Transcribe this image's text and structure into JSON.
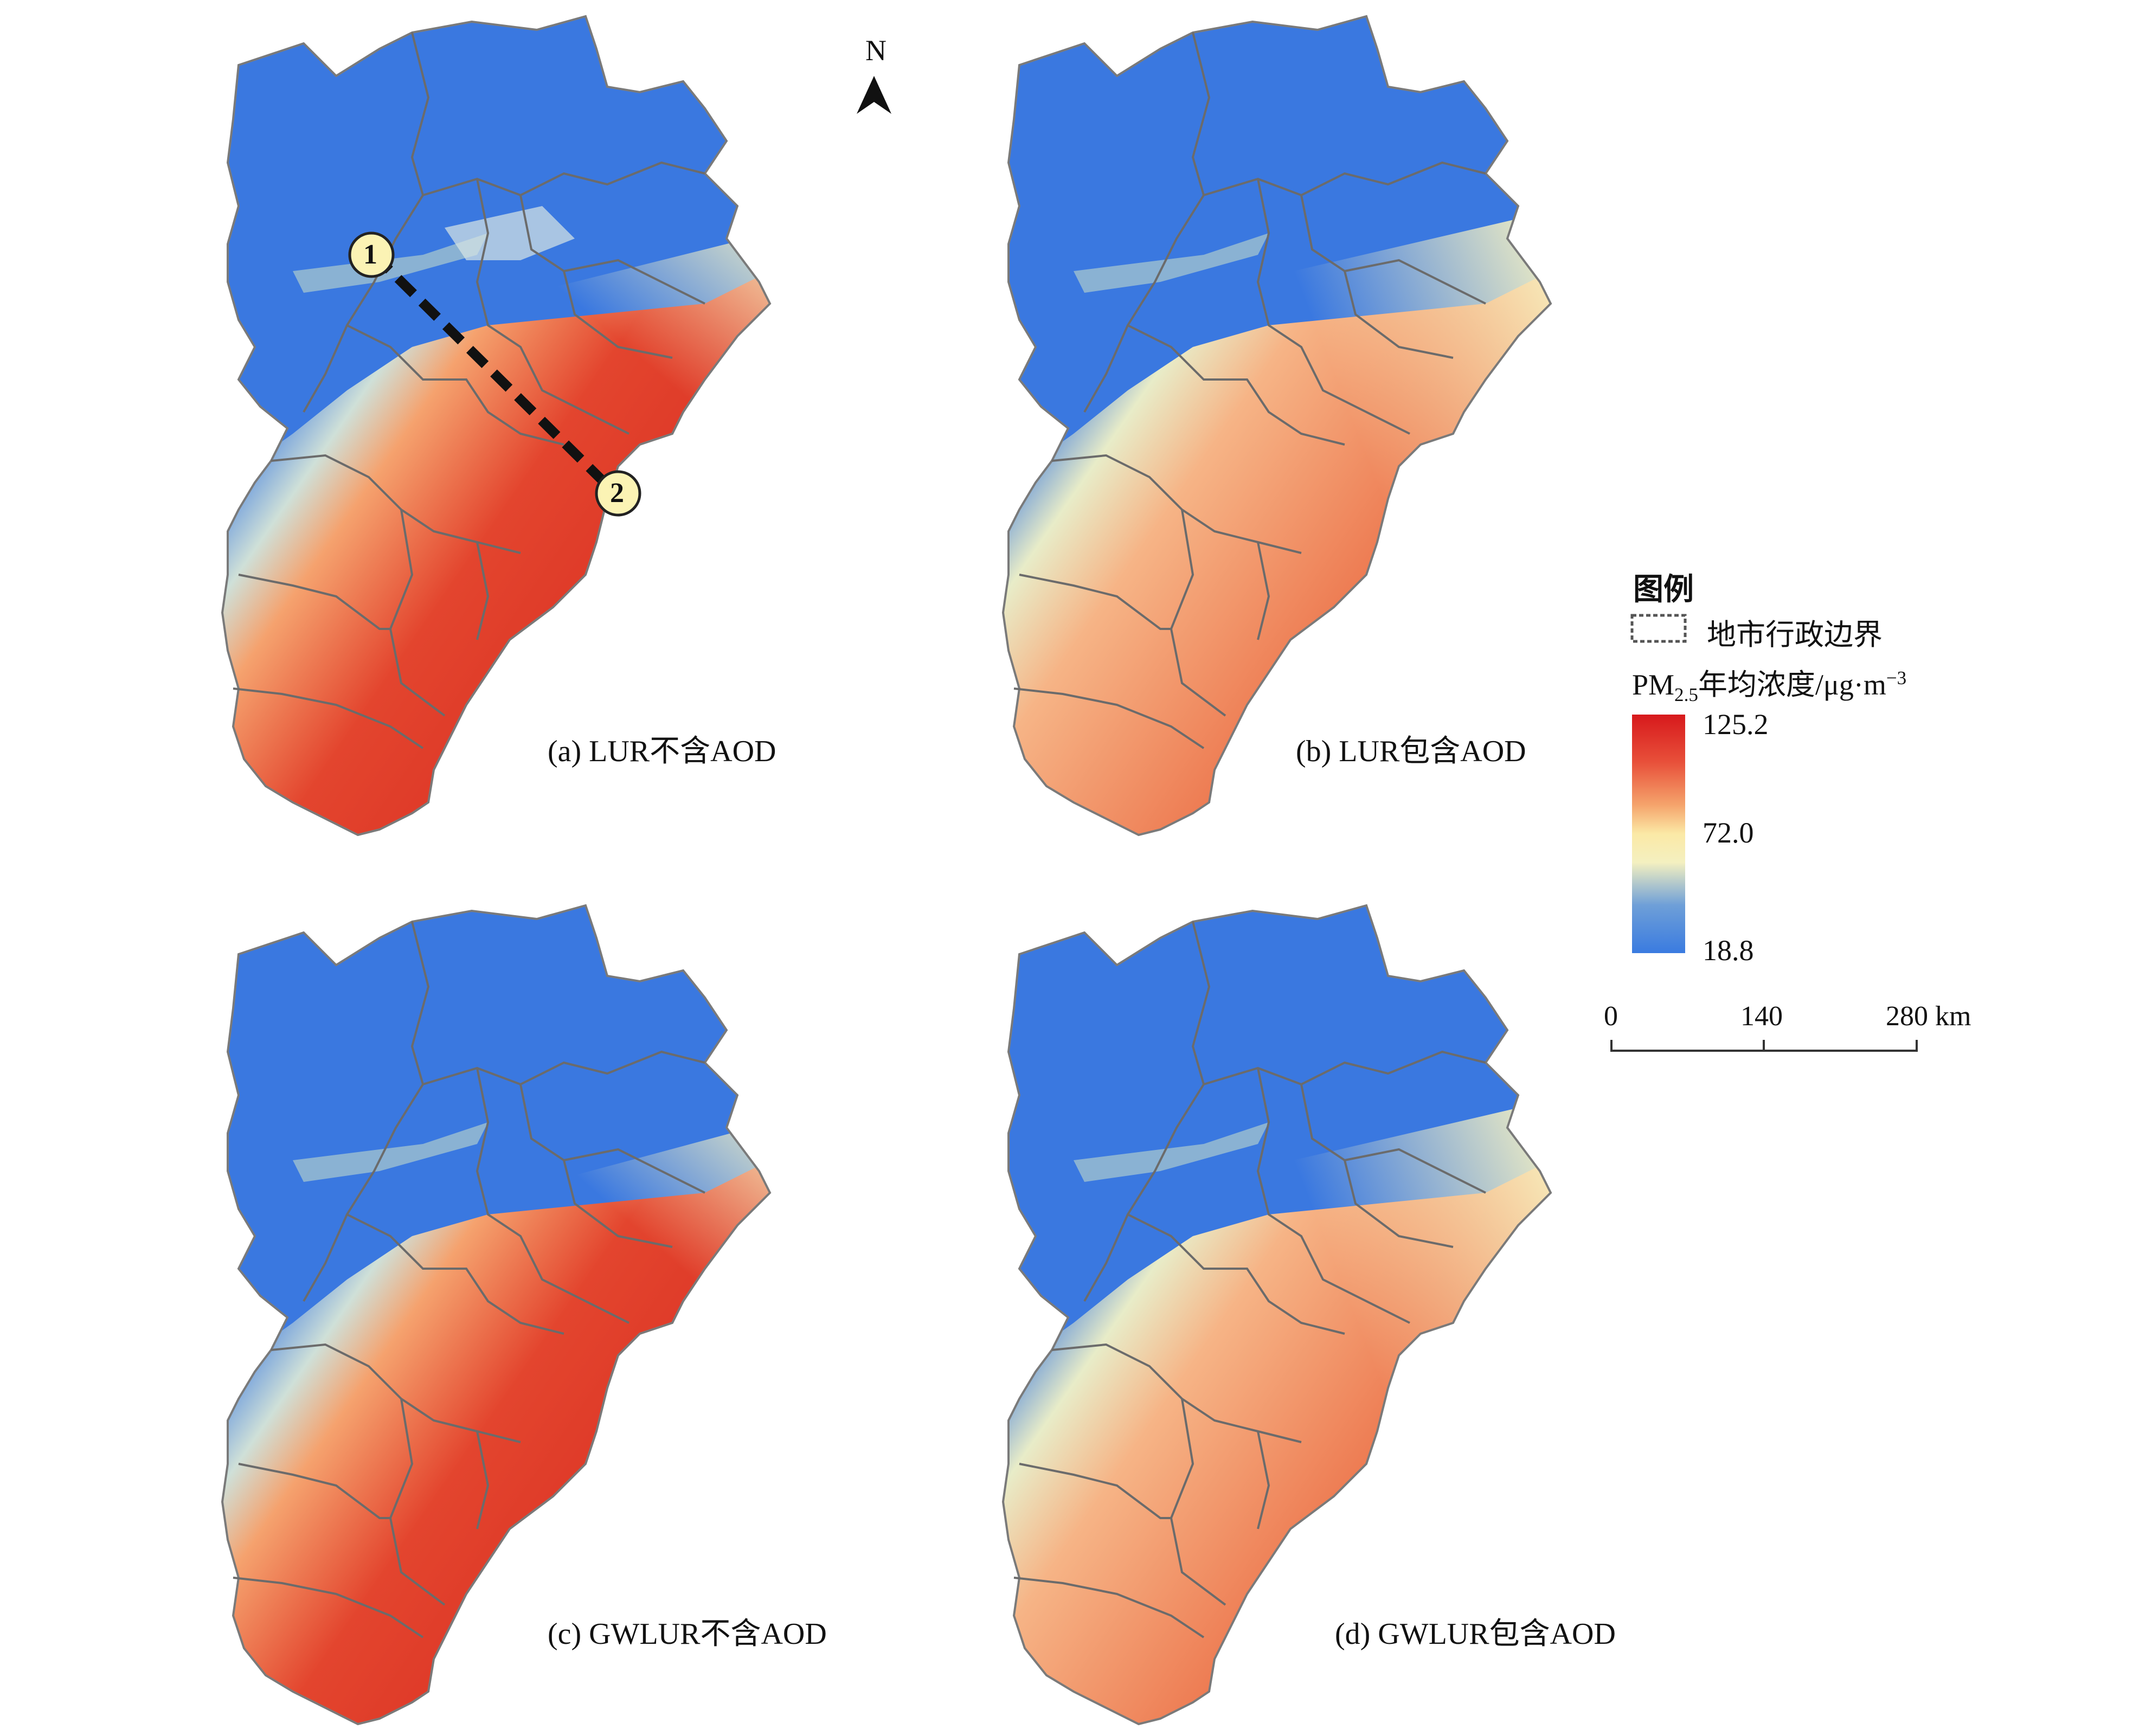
{
  "north_arrow": {
    "label": "N"
  },
  "panels": [
    {
      "caption": "(a) LUR不含AOD"
    },
    {
      "caption": "(b) LUR包含AOD"
    },
    {
      "caption": "(c) GWLUR不含AOD"
    },
    {
      "caption": "(d) GWLUR包含AOD"
    }
  ],
  "transect": {
    "start_label": "1",
    "end_label": "2"
  },
  "legend": {
    "title": "图例",
    "boundary_label": "地市行政边界",
    "concentration_title_pm": "PM",
    "concentration_title_sub": "2.5",
    "concentration_title_rest": "年均浓度/μg·m",
    "concentration_title_sup": "−3",
    "max_label": "125.2",
    "mid_label": "72.0",
    "min_label": "18.8",
    "colors": [
      "#3a7be0",
      "#6e9fd8",
      "#f4f0c0",
      "#fbe9a6",
      "#f5a46c",
      "#e8503a",
      "#d7191c"
    ]
  },
  "scale_bar": {
    "labels": [
      "0",
      "140",
      "280 km"
    ]
  },
  "colors": {
    "low": "#3a78e0",
    "mid": "#f3f0c2",
    "high": "#d7261e",
    "boundary": "#6b6b6b"
  }
}
